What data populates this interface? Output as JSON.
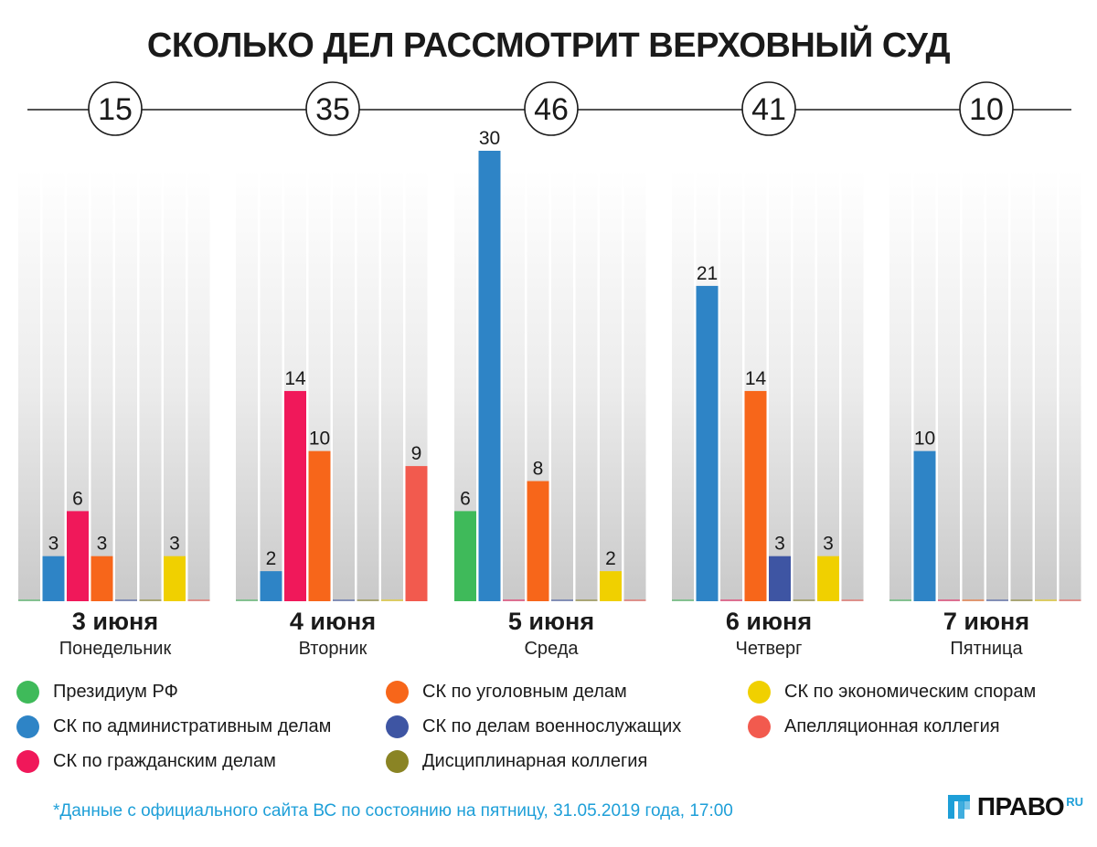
{
  "chart_data": {
    "type": "bar",
    "title": "СКОЛЬКО ДЕЛ РАССМОТРИТ ВЕРХОВНЫЙ СУД",
    "ylim": [
      0,
      30
    ],
    "categories": [
      {
        "date": "3 июня",
        "weekday": "Понедельник",
        "total": "15"
      },
      {
        "date": "4 июня",
        "weekday": "Вторник",
        "total": "35"
      },
      {
        "date": "5 июня",
        "weekday": "Среда",
        "total": "46"
      },
      {
        "date": "6 июня",
        "weekday": "Четверг",
        "total": "41"
      },
      {
        "date": "7 июня",
        "weekday": "Пятница",
        "total": "10"
      }
    ],
    "series": [
      {
        "name": "Президиум РФ",
        "color": "#3fba5a",
        "values": [
          0,
          0,
          6,
          0,
          0
        ]
      },
      {
        "name": "СК по административным делам",
        "color": "#2e84c6",
        "values": [
          3,
          2,
          30,
          21,
          10
        ]
      },
      {
        "name": "СК по гражданским делам",
        "color": "#f0185a",
        "values": [
          6,
          14,
          0,
          0,
          0
        ]
      },
      {
        "name": "СК по уголовным делам",
        "color": "#f7661a",
        "values": [
          3,
          10,
          8,
          14,
          0
        ]
      },
      {
        "name": "СК по делам военнослужащих",
        "color": "#3e55a3",
        "values": [
          0,
          0,
          0,
          3,
          0
        ]
      },
      {
        "name": "Дисциплинарная коллегия",
        "color": "#8a8424",
        "values": [
          0,
          0,
          0,
          0,
          0
        ]
      },
      {
        "name": "СК по экономическим спорам",
        "color": "#f0d000",
        "values": [
          3,
          0,
          2,
          3,
          0
        ]
      },
      {
        "name": "Апелляционная коллегия",
        "color": "#f25a4e",
        "values": [
          0,
          9,
          0,
          0,
          0
        ]
      }
    ]
  },
  "legend": {
    "items": [
      {
        "label": "Президиум РФ",
        "color": "#3fba5a"
      },
      {
        "label": "СК по административным делам",
        "color": "#2e84c6"
      },
      {
        "label": "СК по гражданским делам",
        "color": "#f0185a"
      },
      {
        "label": "СК по уголовным делам",
        "color": "#f7661a"
      },
      {
        "label": "СК по делам военнослужащих",
        "color": "#3e55a3"
      },
      {
        "label": "Дисциплинарная коллегия",
        "color": "#8a8424"
      },
      {
        "label": "СК по экономическим спорам",
        "color": "#f0d000"
      },
      {
        "label": "Апелляционная коллегия",
        "color": "#f25a4e"
      }
    ]
  },
  "footnote": "*Данные с официального сайта ВС по состоянию на пятницу, 31.05.2019 года, 17:00",
  "logo": {
    "text": "ПРАВО",
    "suffix": "RU",
    "accent": "#1e9fd8"
  }
}
